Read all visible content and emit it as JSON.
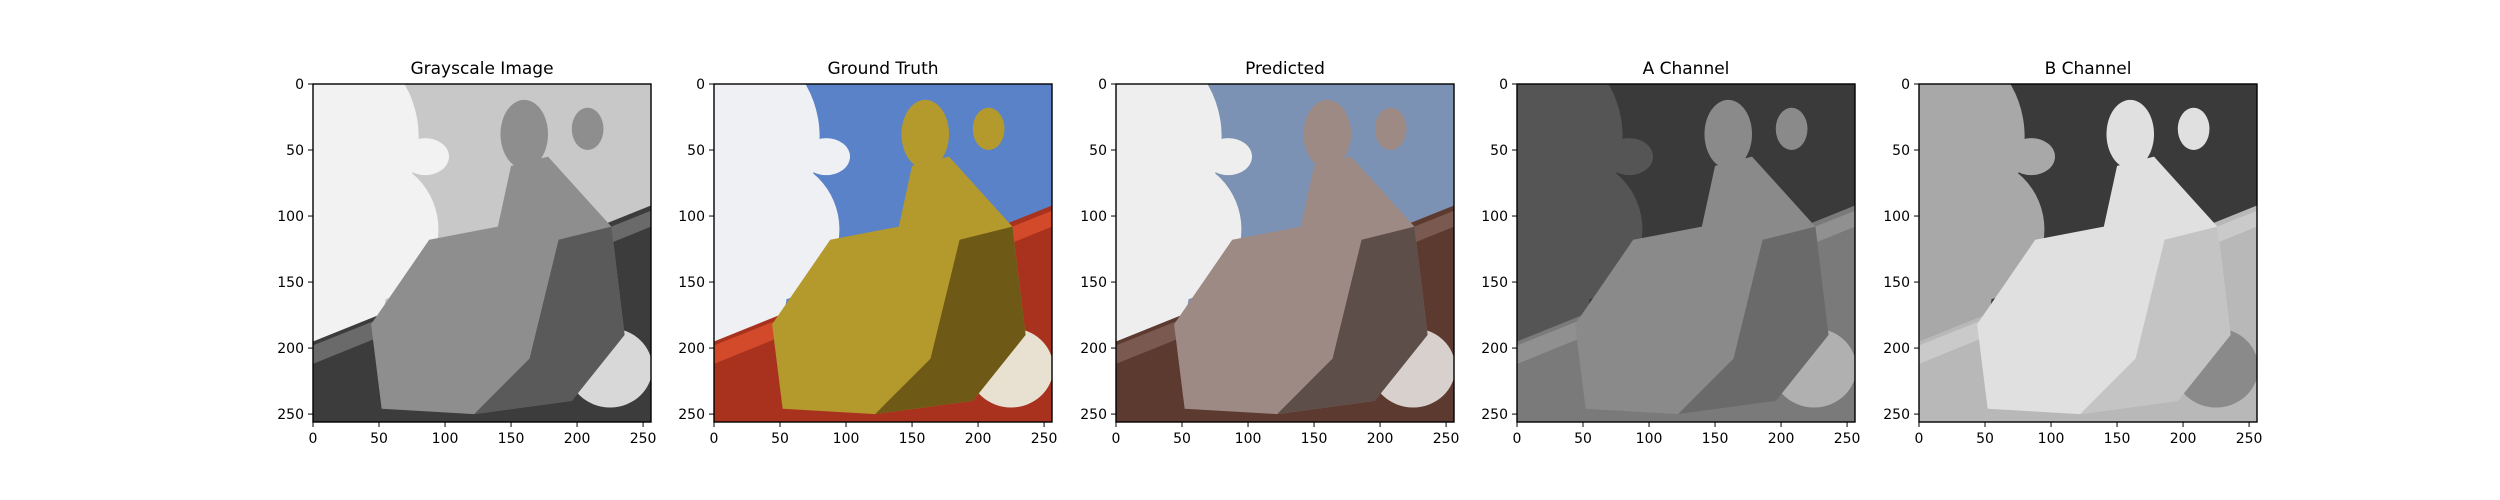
{
  "chart_data": [
    {
      "type": "image",
      "title": "Grayscale Image",
      "xlim": [
        0,
        256
      ],
      "ylim": [
        256,
        0
      ],
      "xticks": [
        0,
        50,
        100,
        150,
        200,
        250
      ],
      "yticks": [
        0,
        50,
        100,
        150,
        200,
        250
      ],
      "palette": {
        "sky": "#c8c8c8",
        "cloud": "#f2f2f2",
        "statue": "#8e8e8e",
        "statue_shadow": "#5a5a5a",
        "wall": "#3c3c3c",
        "wall_trim": "#6a6a6a",
        "floor": "#2a2a2a",
        "deco": "#d8d8d8"
      }
    },
    {
      "type": "image",
      "title": "Ground Truth",
      "xlim": [
        0,
        256
      ],
      "ylim": [
        256,
        0
      ],
      "xticks": [
        0,
        50,
        100,
        150,
        200,
        250
      ],
      "yticks": [
        0,
        50,
        100,
        150,
        200,
        250
      ],
      "palette": {
        "sky": "#5a82c8",
        "cloud": "#eef0f4",
        "statue": "#b49a2c",
        "statue_shadow": "#6e5a16",
        "wall": "#a8321e",
        "wall_trim": "#d24a2a",
        "floor": "#3a1a12",
        "deco": "#e8e0d0"
      }
    },
    {
      "type": "image",
      "title": "Predicted",
      "xlim": [
        0,
        256
      ],
      "ylim": [
        256,
        0
      ],
      "xticks": [
        0,
        50,
        100,
        150,
        200,
        250
      ],
      "yticks": [
        0,
        50,
        100,
        150,
        200,
        250
      ],
      "palette": {
        "sky": "#7c92b4",
        "cloud": "#eeeeee",
        "statue": "#9e8a84",
        "statue_shadow": "#5e4e4a",
        "wall": "#5c3a30",
        "wall_trim": "#7a5a50",
        "floor": "#2e2220",
        "deco": "#d8d0cc"
      }
    },
    {
      "type": "image",
      "title": "A Channel",
      "xlim": [
        0,
        256
      ],
      "ylim": [
        256,
        0
      ],
      "xticks": [
        0,
        50,
        100,
        150,
        200,
        250
      ],
      "yticks": [
        0,
        50,
        100,
        150,
        200,
        250
      ],
      "palette": {
        "sky": "#3a3a3a",
        "cloud": "#555555",
        "statue": "#8a8a8a",
        "statue_shadow": "#6a6a6a",
        "wall": "#7a7a7a",
        "wall_trim": "#909090",
        "floor": "#4a4a4a",
        "deco": "#b0b0b0"
      }
    },
    {
      "type": "image",
      "title": "B Channel",
      "xlim": [
        0,
        256
      ],
      "ylim": [
        256,
        0
      ],
      "xticks": [
        0,
        50,
        100,
        150,
        200,
        250
      ],
      "yticks": [
        0,
        50,
        100,
        150,
        200,
        250
      ],
      "palette": {
        "sky": "#3a3a3a",
        "cloud": "#a8a8a8",
        "statue": "#e0e0e0",
        "statue_shadow": "#c4c4c4",
        "wall": "#b8b8b8",
        "wall_trim": "#cacaca",
        "floor": "#9a9a9a",
        "deco": "#8a8a8a"
      }
    }
  ]
}
